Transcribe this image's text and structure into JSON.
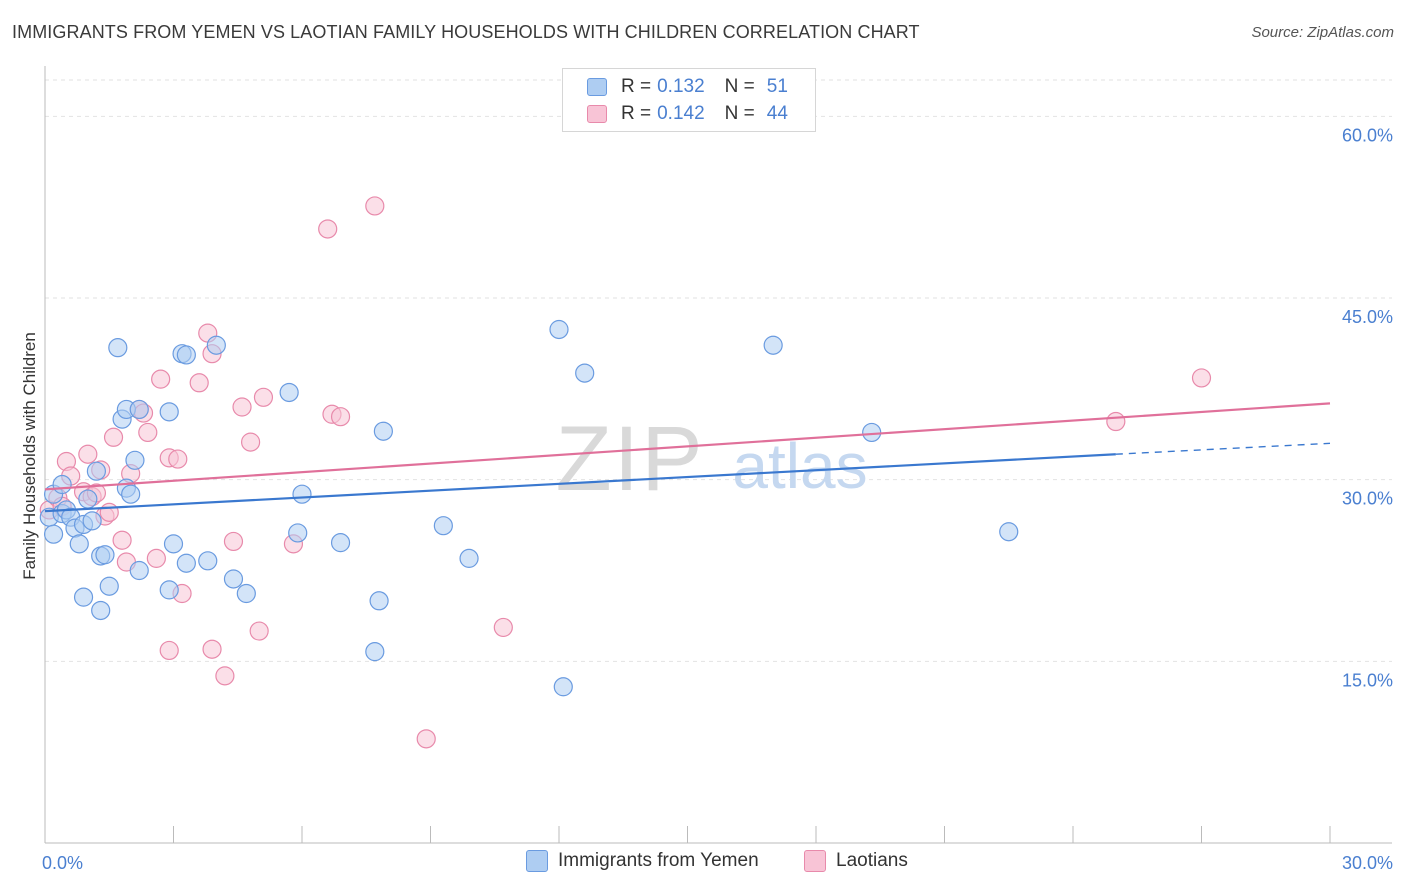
{
  "title": "IMMIGRANTS FROM YEMEN VS LAOTIAN FAMILY HOUSEHOLDS WITH CHILDREN CORRELATION CHART",
  "source": "Source: ZipAtlas.com",
  "watermark": {
    "zip": "ZIP",
    "atlas": "atlas"
  },
  "legend": {
    "rows": [
      {
        "r_label": "R = ",
        "r_value": "0.132",
        "n_label": "N = ",
        "n_value": "51"
      },
      {
        "r_label": "R = ",
        "r_value": "0.142",
        "n_label": "N = ",
        "n_value": "44"
      }
    ]
  },
  "bottom_legend": {
    "series1": "Immigrants from Yemen",
    "series2": "Laotians"
  },
  "colors": {
    "blue_fill": "#aecdf2",
    "blue_stroke": "#6a9be0",
    "blue_line": "#3a78cf",
    "pink_fill": "#f8c4d6",
    "pink_stroke": "#e88aab",
    "pink_line": "#e0709a",
    "tick_label": "#4a7fd0",
    "grid": "#e2e2e2"
  },
  "chart_data": {
    "type": "scatter",
    "title": "IMMIGRANTS FROM YEMEN VS LAOTIAN FAMILY HOUSEHOLDS WITH CHILDREN CORRELATION CHART",
    "xlabel": "",
    "ylabel": "Family Households with Children",
    "xlim": [
      0,
      30
    ],
    "ylim": [
      0,
      63
    ],
    "x_tick_labels": [
      {
        "value": 0,
        "label": "0.0%"
      },
      {
        "value": 30,
        "label": "30.0%"
      }
    ],
    "y_tick_labels": [
      {
        "value": 15,
        "label": "15.0%"
      },
      {
        "value": 30,
        "label": "30.0%"
      },
      {
        "value": 45,
        "label": "45.0%"
      },
      {
        "value": 60,
        "label": "60.0%"
      }
    ],
    "series": [
      {
        "name": "Immigrants from Yemen",
        "R": 0.132,
        "N": 51,
        "trend": {
          "x0": 0.0,
          "y0": 27.4,
          "x1": 25.0,
          "y1": 32.1,
          "dash_to_x": 30.0,
          "dash_to_y": 33.0
        },
        "points": [
          [
            0.1,
            26.9
          ],
          [
            0.2,
            25.5
          ],
          [
            0.2,
            28.8
          ],
          [
            0.4,
            27.2
          ],
          [
            0.4,
            29.6
          ],
          [
            0.5,
            27.5
          ],
          [
            0.6,
            26.9
          ],
          [
            0.7,
            26.0
          ],
          [
            0.8,
            24.7
          ],
          [
            0.9,
            26.3
          ],
          [
            0.9,
            20.3
          ],
          [
            1.0,
            28.4
          ],
          [
            1.1,
            26.6
          ],
          [
            1.2,
            30.7
          ],
          [
            1.3,
            19.2
          ],
          [
            1.3,
            23.7
          ],
          [
            1.4,
            23.8
          ],
          [
            1.5,
            21.2
          ],
          [
            1.7,
            40.9
          ],
          [
            1.8,
            35.0
          ],
          [
            1.9,
            29.3
          ],
          [
            1.9,
            35.8
          ],
          [
            2.0,
            28.8
          ],
          [
            2.1,
            31.6
          ],
          [
            2.2,
            35.8
          ],
          [
            2.2,
            22.5
          ],
          [
            2.9,
            35.6
          ],
          [
            2.9,
            20.9
          ],
          [
            3.0,
            24.7
          ],
          [
            3.2,
            40.4
          ],
          [
            3.3,
            40.3
          ],
          [
            3.3,
            23.1
          ],
          [
            3.8,
            23.3
          ],
          [
            4.0,
            41.1
          ],
          [
            4.4,
            21.8
          ],
          [
            4.7,
            20.6
          ],
          [
            5.7,
            37.2
          ],
          [
            5.9,
            25.6
          ],
          [
            6.0,
            28.8
          ],
          [
            6.9,
            24.8
          ],
          [
            7.7,
            15.8
          ],
          [
            7.8,
            20.0
          ],
          [
            7.9,
            34.0
          ],
          [
            9.3,
            26.2
          ],
          [
            9.9,
            23.5
          ],
          [
            12.0,
            42.4
          ],
          [
            12.6,
            38.8
          ],
          [
            12.1,
            12.9
          ],
          [
            17.0,
            41.1
          ],
          [
            19.3,
            33.9
          ],
          [
            22.5,
            25.7
          ]
        ]
      },
      {
        "name": "Laotians",
        "R": 0.142,
        "N": 44,
        "trend": {
          "x0": 0.0,
          "y0": 29.2,
          "x1": 30.0,
          "y1": 36.3
        },
        "points": [
          [
            0.1,
            27.5
          ],
          [
            0.3,
            28.5
          ],
          [
            0.4,
            27.8
          ],
          [
            0.5,
            31.5
          ],
          [
            0.6,
            30.3
          ],
          [
            0.9,
            29.0
          ],
          [
            1.0,
            32.1
          ],
          [
            1.1,
            28.6
          ],
          [
            1.2,
            28.9
          ],
          [
            1.3,
            30.8
          ],
          [
            1.4,
            27.0
          ],
          [
            1.5,
            27.3
          ],
          [
            1.6,
            33.5
          ],
          [
            1.8,
            25.0
          ],
          [
            1.9,
            23.2
          ],
          [
            2.0,
            30.5
          ],
          [
            2.2,
            35.8
          ],
          [
            2.3,
            35.5
          ],
          [
            2.4,
            33.9
          ],
          [
            2.6,
            23.5
          ],
          [
            2.7,
            38.3
          ],
          [
            2.9,
            31.8
          ],
          [
            2.9,
            15.9
          ],
          [
            3.1,
            31.7
          ],
          [
            3.2,
            20.6
          ],
          [
            3.6,
            38.0
          ],
          [
            3.8,
            42.1
          ],
          [
            3.9,
            16.0
          ],
          [
            3.9,
            40.4
          ],
          [
            4.2,
            13.8
          ],
          [
            4.4,
            24.9
          ],
          [
            4.6,
            36.0
          ],
          [
            4.8,
            33.1
          ],
          [
            5.0,
            17.5
          ],
          [
            5.1,
            36.8
          ],
          [
            5.8,
            24.7
          ],
          [
            6.7,
            35.4
          ],
          [
            6.9,
            35.2
          ],
          [
            6.6,
            50.7
          ],
          [
            7.7,
            52.6
          ],
          [
            8.9,
            8.6
          ],
          [
            10.7,
            17.8
          ],
          [
            25.0,
            34.8
          ],
          [
            27.0,
            38.4
          ]
        ]
      }
    ]
  }
}
